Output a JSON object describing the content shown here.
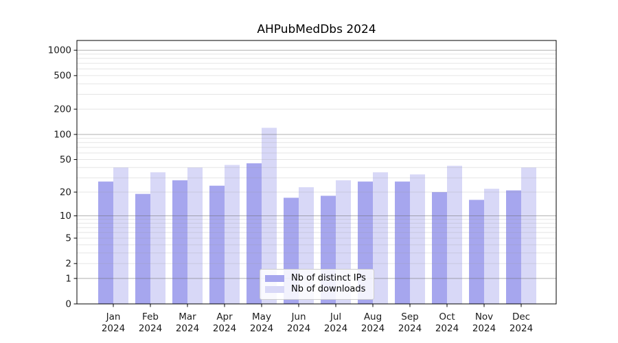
{
  "chart_data": {
    "type": "bar",
    "title": "AHPubMedDbs 2024",
    "categories": [
      "Jan",
      "Feb",
      "Mar",
      "Apr",
      "May",
      "Jun",
      "Jul",
      "Aug",
      "Sep",
      "Oct",
      "Nov",
      "Dec"
    ],
    "x_sublabel": "2024",
    "series": [
      {
        "name": "Nb of distinct IPs",
        "color": "#a6a6ee",
        "values": [
          27,
          19,
          28,
          24,
          45,
          17,
          18,
          27,
          27,
          20,
          16,
          21
        ]
      },
      {
        "name": "Nb of downloads",
        "color": "#d8d8f7",
        "values": [
          40,
          35,
          40,
          43,
          120,
          23,
          28,
          35,
          33,
          42,
          22,
          40
        ]
      }
    ],
    "y_axis": {
      "scale": "log1p",
      "tick_values": [
        0,
        1,
        2,
        5,
        10,
        20,
        50,
        100,
        200,
        500,
        1000
      ],
      "major_grid_values": [
        1,
        10,
        100,
        1000
      ],
      "minor_grid_mantissas": [
        2,
        3,
        4,
        5,
        6,
        7,
        8,
        9
      ],
      "ylim": [
        0,
        1300
      ]
    },
    "legend": {
      "entries": [
        "Nb of distinct IPs",
        "Nb of downloads"
      ],
      "position": "lower center"
    },
    "grid": true
  },
  "colors": {
    "axis": "#000000",
    "tick_label": "#1a1a1a",
    "major_grid": "#6e6e6e",
    "minor_grid": "#999999",
    "legend_border": "#cccccc"
  }
}
